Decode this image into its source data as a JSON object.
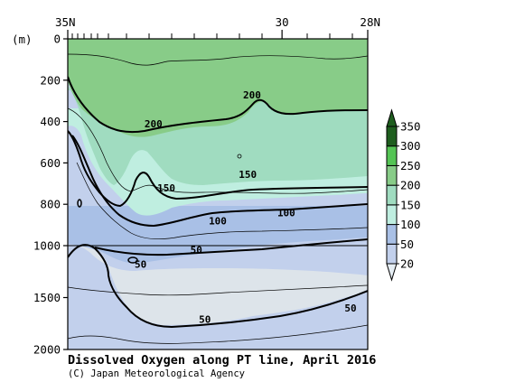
{
  "chart_data": {
    "type": "heatmap",
    "title": "Dissolved Oxygen along PT line, April 2016",
    "credit": "(C) Japan Meteorological Agency",
    "x_axis": {
      "ticks": [
        "35N",
        "30",
        "28N"
      ],
      "tick_values": [
        35,
        30,
        28
      ],
      "range": [
        35,
        28
      ]
    },
    "y_axis": {
      "label": "(m)",
      "ticks": [
        "0",
        "200",
        "400",
        "600",
        "800",
        "1000",
        "1500",
        "2000"
      ],
      "tick_values": [
        0,
        200,
        400,
        600,
        800,
        1000,
        1500,
        2000
      ],
      "range": [
        0,
        2000
      ],
      "scale_note": "upper 0-1000 m and lower 1000-2000 m compressed"
    },
    "colorbar": {
      "levels": [
        "20",
        "50",
        "100",
        "150",
        "200",
        "250",
        "300",
        "350"
      ],
      "colors": [
        "#e6eef4",
        "#c2d0ec",
        "#a9c0e6",
        "#bfeee0",
        "#a0dcc0",
        "#88cc88",
        "#55c455",
        "#1f5e1f"
      ]
    },
    "contour_labels": [
      {
        "text": "200",
        "lat": 33.0,
        "depth": 410
      },
      {
        "text": "200",
        "lat": 30.7,
        "depth": 270
      },
      {
        "text": "150",
        "lat": 32.7,
        "depth": 720
      },
      {
        "text": "150",
        "lat": 30.8,
        "depth": 655
      },
      {
        "text": "100",
        "lat": 31.5,
        "depth": 880
      },
      {
        "text": "100",
        "lat": 29.9,
        "depth": 840
      },
      {
        "text": "50",
        "lat": 32.0,
        "depth": 1040
      },
      {
        "text": "50",
        "lat": 33.3,
        "depth": 1180
      },
      {
        "text": "50",
        "lat": 31.8,
        "depth": 1710
      },
      {
        "text": "50",
        "lat": 28.4,
        "depth": 1600
      }
    ],
    "sampled_isolines": {
      "oxygen_200": [
        [
          35.0,
          100
        ],
        [
          34.5,
          290
        ],
        [
          34.0,
          390
        ],
        [
          33.2,
          410
        ],
        [
          32.0,
          370
        ],
        [
          31.0,
          320
        ],
        [
          30.5,
          270
        ],
        [
          30.0,
          345
        ],
        [
          29.5,
          355
        ],
        [
          29.0,
          345
        ],
        [
          28.0,
          340
        ]
      ],
      "oxygen_150": [
        [
          35.0,
          300
        ],
        [
          34.5,
          560
        ],
        [
          34.0,
          700
        ],
        [
          33.5,
          680
        ],
        [
          33.0,
          700
        ],
        [
          32.5,
          675
        ],
        [
          31.5,
          640
        ],
        [
          30.5,
          650
        ],
        [
          29.5,
          620
        ],
        [
          28.5,
          625
        ],
        [
          28.0,
          610
        ]
      ],
      "oxygen_100": [
        [
          35.0,
          500
        ],
        [
          34.5,
          640
        ],
        [
          34.0,
          840
        ],
        [
          33.5,
          900
        ],
        [
          33.0,
          880
        ],
        [
          32.0,
          860
        ],
        [
          31.0,
          840
        ],
        [
          30.0,
          835
        ],
        [
          29.0,
          810
        ],
        [
          28.0,
          800
        ]
      ],
      "oxygen_50": [
        [
          35.0,
          970
        ],
        [
          34.5,
          1160
        ],
        [
          34.0,
          1340
        ],
        [
          33.5,
          1560
        ],
        [
          33.0,
          1720
        ],
        [
          32.5,
          1770
        ],
        [
          32.0,
          1730
        ],
        [
          31.0,
          1710
        ],
        [
          30.0,
          1650
        ],
        [
          29.0,
          1590
        ],
        [
          28.0,
          1430
        ]
      ]
    }
  }
}
